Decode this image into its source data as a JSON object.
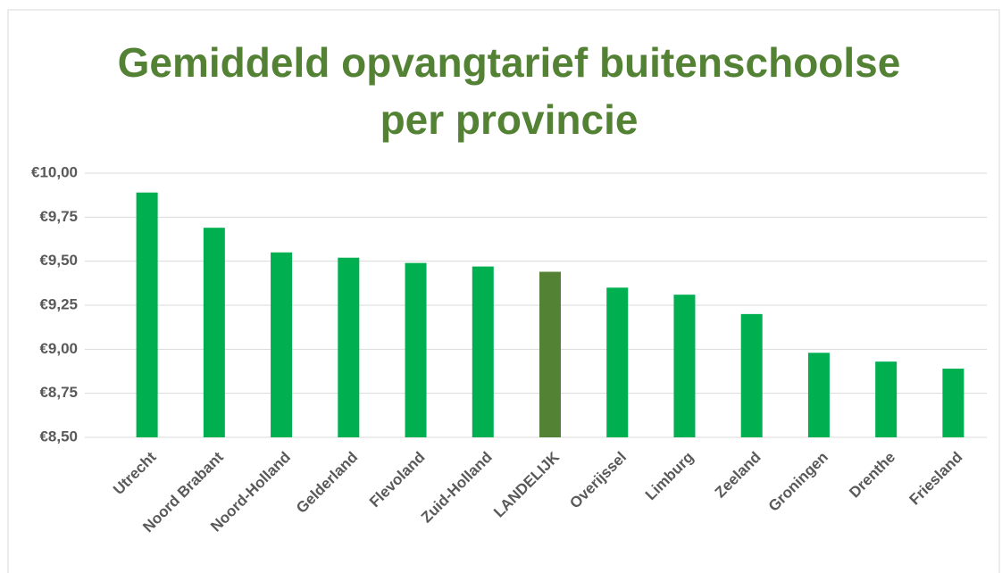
{
  "chart_data": {
    "type": "bar",
    "title": "Gemiddeld opvangtarief buitenschoolse per provincie",
    "categories": [
      "Utrecht",
      "Noord Brabant",
      "Noord-Holland",
      "Gelderland",
      "Flevoland",
      "Zuid-Holland",
      "LANDELIJK",
      "Overijssel",
      "Limburg",
      "Zeeland",
      "Groningen",
      "Drenthe",
      "Friesland"
    ],
    "values": [
      9.89,
      9.69,
      9.55,
      9.52,
      9.49,
      9.47,
      9.44,
      9.35,
      9.31,
      9.2,
      8.98,
      8.93,
      8.89
    ],
    "colors": [
      "#00b050",
      "#00b050",
      "#00b050",
      "#00b050",
      "#00b050",
      "#00b050",
      "#548235",
      "#00b050",
      "#00b050",
      "#00b050",
      "#00b050",
      "#00b050",
      "#00b050"
    ],
    "ylim": [
      8.5,
      10
    ],
    "yticks": [
      {
        "value": 8.5,
        "label": "€8,50"
      },
      {
        "value": 8.75,
        "label": "€8,75"
      },
      {
        "value": 9,
        "label": "€9,00"
      },
      {
        "value": 9.25,
        "label": "€9,25"
      },
      {
        "value": 9.5,
        "label": "€9,50"
      },
      {
        "value": 9.75,
        "label": "€9,75"
      },
      {
        "value": 10,
        "label": "€10,00"
      }
    ],
    "grid": true
  }
}
